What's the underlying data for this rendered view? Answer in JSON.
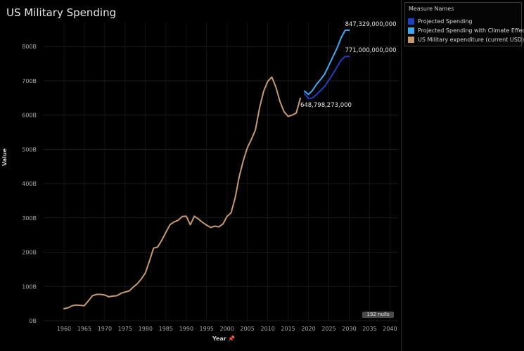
{
  "title": "US Military Spending",
  "legend": {
    "title": "Measure Names",
    "items": [
      {
        "label": "Projected Spending",
        "color": "#1f3fbf"
      },
      {
        "label": "Projected Spending with Climate Effect",
        "color": "#3ea9f5"
      },
      {
        "label": "US Military expenditure (current USD)",
        "color": "#c69a6d"
      }
    ]
  },
  "nulls_badge": "192 nulls",
  "chart_data": {
    "type": "line",
    "xlabel": "Year",
    "ylabel": "Value",
    "xlim": [
      1955,
      2042
    ],
    "ylim": [
      0,
      870
    ],
    "x_ticks": [
      1960,
      1965,
      1970,
      1975,
      1980,
      1985,
      1990,
      1995,
      2000,
      2005,
      2010,
      2015,
      2020,
      2025,
      2030,
      2035,
      2040
    ],
    "y_ticks": [
      {
        "value": 0,
        "label": "0B"
      },
      {
        "value": 100,
        "label": "100B"
      },
      {
        "value": 200,
        "label": "200B"
      },
      {
        "value": 300,
        "label": "300B"
      },
      {
        "value": 400,
        "label": "400B"
      },
      {
        "value": 500,
        "label": "500B"
      },
      {
        "value": 600,
        "label": "600B"
      },
      {
        "value": 700,
        "label": "700B"
      },
      {
        "value": 800,
        "label": "800B"
      }
    ],
    "grid": true,
    "legend_position": "right",
    "series": [
      {
        "name": "US Military expenditure (current USD)",
        "color": "#c69a6d",
        "x": [
          1960,
          1961,
          1962,
          1963,
          1964,
          1965,
          1966,
          1967,
          1968,
          1969,
          1970,
          1971,
          1972,
          1973,
          1974,
          1975,
          1976,
          1977,
          1978,
          1979,
          1980,
          1981,
          1982,
          1983,
          1984,
          1985,
          1986,
          1987,
          1988,
          1989,
          1990,
          1991,
          1992,
          1993,
          1994,
          1995,
          1996,
          1997,
          1998,
          1999,
          2000,
          2001,
          2002,
          2003,
          2004,
          2005,
          2006,
          2007,
          2008,
          2009,
          2010,
          2011,
          2012,
          2013,
          2014,
          2015,
          2016,
          2017,
          2018
        ],
        "y": [
          35,
          38,
          44,
          46,
          45,
          44,
          58,
          73,
          77,
          77,
          75,
          70,
          72,
          73,
          80,
          84,
          87,
          98,
          108,
          122,
          140,
          175,
          212,
          215,
          235,
          258,
          280,
          288,
          293,
          304,
          305,
          280,
          305,
          297,
          287,
          279,
          272,
          276,
          274,
          282,
          304,
          315,
          358,
          420,
          467,
          505,
          529,
          557,
          621,
          669,
          698,
          711,
          682,
          640,
          610,
          596,
          600,
          606,
          648.798273
        ]
      },
      {
        "name": "Projected Spending",
        "color": "#1f3fbf",
        "x": [
          2019,
          2020,
          2021,
          2022,
          2023,
          2024,
          2025,
          2026,
          2027,
          2028,
          2029,
          2030
        ],
        "y": [
          663,
          648,
          650,
          660,
          672,
          684,
          702,
          720,
          740,
          760,
          771,
          771
        ]
      },
      {
        "name": "Projected Spending with Climate Effect",
        "color": "#3ea9f5",
        "x": [
          2019,
          2020,
          2021,
          2022,
          2023,
          2024,
          2025,
          2026,
          2027,
          2028,
          2029,
          2030
        ],
        "y": [
          670,
          660,
          672,
          690,
          704,
          720,
          745,
          770,
          795,
          825,
          847.329,
          847.329
        ]
      }
    ],
    "annotations": [
      {
        "text": "847,329,000,000",
        "x": 2029.5,
        "y": 847.329
      },
      {
        "text": "771,000,000,000",
        "x": 2029.5,
        "y": 771
      },
      {
        "text": "648,798,273,000",
        "x": 2018,
        "y": 648.798273
      }
    ]
  }
}
